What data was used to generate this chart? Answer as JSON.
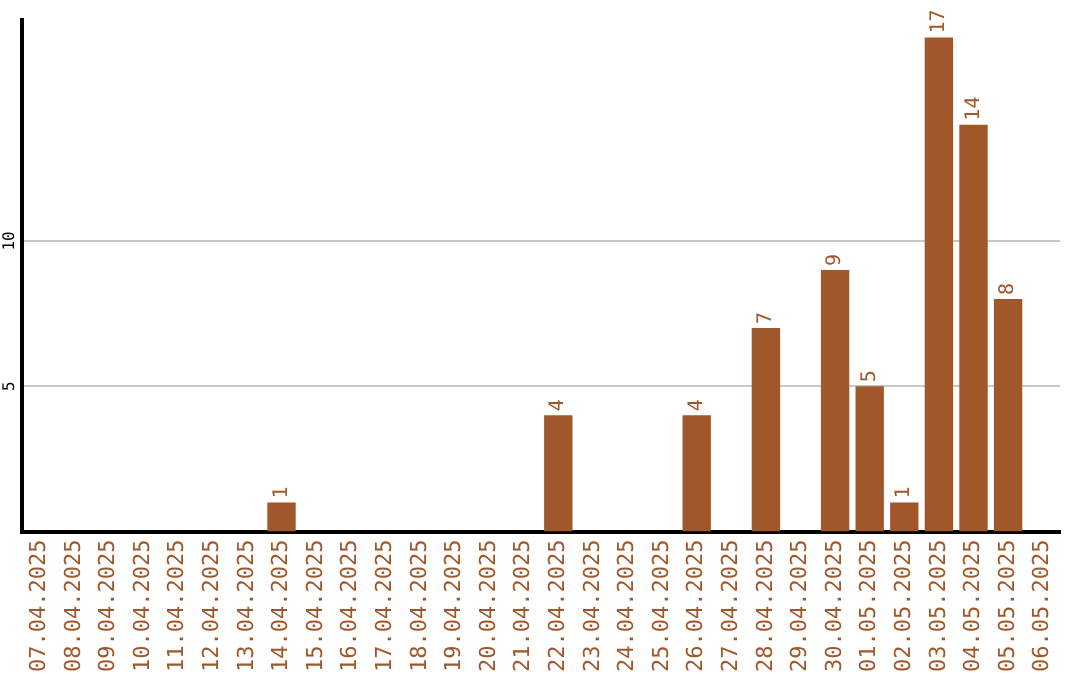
{
  "chart_data": {
    "type": "bar",
    "categories": [
      "07.04.2025",
      "08.04.2025",
      "09.04.2025",
      "10.04.2025",
      "11.04.2025",
      "12.04.2025",
      "13.04.2025",
      "14.04.2025",
      "15.04.2025",
      "16.04.2025",
      "17.04.2025",
      "18.04.2025",
      "19.04.2025",
      "20.04.2025",
      "21.04.2025",
      "22.04.2025",
      "23.04.2025",
      "24.04.2025",
      "25.04.2025",
      "26.04.2025",
      "27.04.2025",
      "28.04.2025",
      "29.04.2025",
      "30.04.2025",
      "01.05.2025",
      "02.05.2025",
      "03.05.2025",
      "04.05.2025",
      "05.05.2025",
      "06.05.2025"
    ],
    "values": [
      0,
      0,
      0,
      0,
      0,
      0,
      0,
      1,
      0,
      0,
      0,
      0,
      0,
      0,
      0,
      4,
      0,
      0,
      0,
      4,
      0,
      7,
      0,
      9,
      5,
      1,
      17,
      14,
      8,
      0
    ],
    "value_labels": [
      null,
      null,
      null,
      null,
      null,
      null,
      null,
      "1",
      null,
      null,
      null,
      null,
      null,
      null,
      null,
      "4",
      null,
      null,
      null,
      "4",
      null,
      "7",
      null,
      "9",
      "5",
      "1",
      "17",
      "14",
      "8",
      null
    ],
    "color": "#a0572a",
    "ylim": [
      0,
      17.6
    ],
    "yticks": [
      5,
      10
    ],
    "grid": "y",
    "legend": false
  }
}
